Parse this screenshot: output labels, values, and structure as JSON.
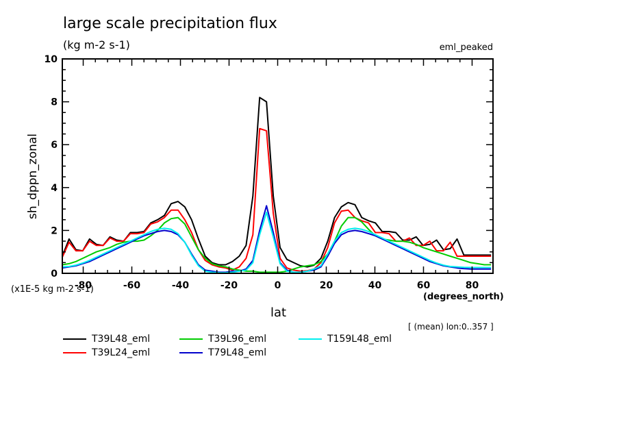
{
  "chart_data": {
    "type": "line",
    "title": "large scale precipitation flux",
    "units": "(kg m-2 s-1)",
    "experiment_label": "eml_peaked",
    "ylabel": "sh_dppn_zonal",
    "scale_note": "(x1E-5 kg m-2 s-1)",
    "xlabel": "lat",
    "xunits": "(degrees_north)",
    "mean_note": "[ (mean) lon:0..357 ]",
    "xlim": [
      -88.6,
      88.6
    ],
    "ylim": [
      0,
      10
    ],
    "xticks": [
      -80,
      -60,
      -40,
      -20,
      0,
      20,
      40,
      60,
      80
    ],
    "xtick_labels": [
      "-80",
      "-60",
      "-40",
      "-20",
      "0",
      "20",
      "40",
      "60",
      "80"
    ],
    "yticks": [
      0,
      2,
      4,
      6,
      8,
      10
    ],
    "ytick_labels": [
      "0",
      "2",
      "4",
      "6",
      "8",
      "10"
    ],
    "grid": false,
    "legend_position": "bottom",
    "x": [
      -88.6,
      -85.8,
      -83,
      -80.2,
      -77.4,
      -74.6,
      -71.8,
      -69,
      -66.2,
      -63.4,
      -60.6,
      -57.8,
      -55,
      -52.2,
      -49.4,
      -46.6,
      -43.8,
      -41,
      -38.2,
      -35.4,
      -32.6,
      -29.8,
      -27,
      -24.2,
      -21.4,
      -18.6,
      -15.8,
      -13,
      -10.2,
      -7.4,
      -4.6,
      -1.8,
      1,
      3.8,
      6.6,
      9.4,
      12.2,
      15,
      17.8,
      20.6,
      23.4,
      26.2,
      29,
      31.8,
      34.6,
      37.4,
      40.2,
      43,
      45.8,
      48.6,
      51.4,
      54.2,
      57,
      59.8,
      62.6,
      65.4,
      68.2,
      71,
      73.8,
      76.6,
      79.4,
      82.2,
      85,
      87.8
    ],
    "series": [
      {
        "name": "T39L48_eml",
        "color": "#000000",
        "values": [
          0.8,
          1.6,
          1.1,
          1.05,
          1.6,
          1.35,
          1.3,
          1.7,
          1.55,
          1.5,
          1.9,
          1.9,
          1.95,
          2.35,
          2.5,
          2.7,
          3.25,
          3.35,
          3.1,
          2.5,
          1.6,
          0.8,
          0.5,
          0.4,
          0.4,
          0.55,
          0.8,
          1.3,
          3.6,
          8.2,
          8.0,
          3.6,
          1.2,
          0.65,
          0.5,
          0.35,
          0.3,
          0.38,
          0.7,
          1.5,
          2.6,
          3.1,
          3.3,
          3.2,
          2.6,
          2.45,
          2.35,
          1.95,
          1.95,
          1.9,
          1.55,
          1.55,
          1.7,
          1.3,
          1.35,
          1.55,
          1.1,
          1.15,
          1.6,
          0.85,
          0.85,
          0.85,
          0.85,
          0.85
        ]
      },
      {
        "name": "T39L24_eml",
        "color": "#ff0000",
        "values": [
          0.75,
          1.45,
          1.05,
          1.05,
          1.5,
          1.3,
          1.3,
          1.65,
          1.5,
          1.5,
          1.85,
          1.85,
          1.9,
          2.3,
          2.4,
          2.6,
          2.95,
          2.95,
          2.5,
          1.9,
          1.1,
          0.6,
          0.4,
          0.3,
          0.25,
          0.15,
          0.3,
          0.7,
          1.8,
          6.75,
          6.65,
          2.8,
          0.7,
          0.25,
          0.15,
          0.1,
          0.12,
          0.2,
          0.5,
          1.2,
          2.35,
          2.9,
          2.95,
          2.6,
          2.45,
          2.35,
          1.9,
          1.9,
          1.85,
          1.5,
          1.5,
          1.65,
          1.3,
          1.3,
          1.5,
          1.05,
          1.05,
          1.45,
          0.8,
          0.8,
          0.8,
          0.8,
          0.8,
          0.8
        ]
      },
      {
        "name": "T39L96_eml",
        "color": "#00cc00",
        "values": [
          0.4,
          0.45,
          0.55,
          0.7,
          0.85,
          1.0,
          1.1,
          1.2,
          1.35,
          1.45,
          1.5,
          1.5,
          1.55,
          1.75,
          2.0,
          2.35,
          2.55,
          2.6,
          2.3,
          1.7,
          1.1,
          0.7,
          0.45,
          0.35,
          0.3,
          0.2,
          0.15,
          0.1,
          0.1,
          0.05,
          0.05,
          0.05,
          0.05,
          0.1,
          0.2,
          0.3,
          0.35,
          0.4,
          0.55,
          0.9,
          1.5,
          2.2,
          2.6,
          2.6,
          2.4,
          2.05,
          1.75,
          1.6,
          1.55,
          1.5,
          1.5,
          1.45,
          1.35,
          1.2,
          1.1,
          1.0,
          0.9,
          0.8,
          0.7,
          0.6,
          0.5,
          0.45,
          0.4,
          0.4
        ]
      },
      {
        "name": "T79L48_eml",
        "color": "#0000cc",
        "values": [
          0.25,
          0.3,
          0.35,
          0.45,
          0.55,
          0.7,
          0.85,
          1.0,
          1.15,
          1.3,
          1.45,
          1.6,
          1.75,
          1.85,
          1.95,
          2.0,
          1.95,
          1.8,
          1.45,
          0.9,
          0.4,
          0.15,
          0.1,
          0.05,
          0.05,
          0.1,
          0.1,
          0.2,
          0.6,
          2.0,
          3.15,
          1.9,
          0.5,
          0.15,
          0.05,
          0.05,
          0.1,
          0.15,
          0.3,
          0.8,
          1.4,
          1.8,
          1.95,
          2.0,
          1.95,
          1.85,
          1.75,
          1.6,
          1.45,
          1.3,
          1.15,
          1.0,
          0.85,
          0.7,
          0.55,
          0.45,
          0.35,
          0.3,
          0.25,
          0.22,
          0.2,
          0.2,
          0.2,
          0.2
        ]
      },
      {
        "name": "T159L48_eml",
        "color": "#00eeee",
        "values": [
          0.3,
          0.32,
          0.38,
          0.48,
          0.6,
          0.75,
          0.9,
          1.05,
          1.2,
          1.35,
          1.5,
          1.65,
          1.8,
          1.95,
          2.05,
          2.1,
          2.05,
          1.85,
          1.45,
          0.85,
          0.35,
          0.1,
          0.05,
          0.03,
          0.03,
          0.05,
          0.1,
          0.15,
          0.5,
          1.8,
          2.85,
          1.7,
          0.45,
          0.1,
          0.05,
          0.05,
          0.1,
          0.2,
          0.35,
          0.9,
          1.5,
          1.9,
          2.05,
          2.1,
          2.05,
          1.95,
          1.8,
          1.65,
          1.5,
          1.35,
          1.2,
          1.05,
          0.9,
          0.75,
          0.6,
          0.48,
          0.38,
          0.32,
          0.3,
          0.28,
          0.27,
          0.27,
          0.27,
          0.27
        ]
      }
    ]
  }
}
